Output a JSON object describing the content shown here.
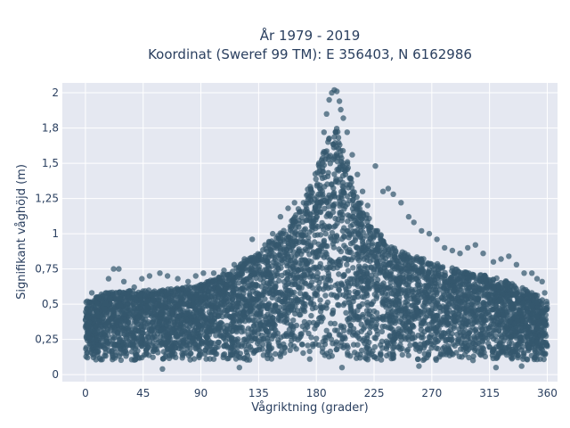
{
  "chart_data": {
    "type": "scatter",
    "title_line1": "År 1979 - 2019",
    "title_line2": "Koordinat (Sweref 99 TM): E 356403, N 6162986",
    "xlabel": "Vågriktning (grader)",
    "ylabel": "Signifikant våghöjd (m)",
    "xlim": [
      -18,
      368
    ],
    "ylim": [
      -0.05,
      2.07
    ],
    "xticks": [
      0,
      45,
      90,
      135,
      180,
      225,
      270,
      315,
      360
    ],
    "xtick_labels": [
      "0",
      "45",
      "90",
      "135",
      "180",
      "225",
      "270",
      "315",
      "360"
    ],
    "yticks": [
      0,
      0.25,
      0.5,
      0.75,
      1,
      1.25,
      1.5,
      1.75,
      2
    ],
    "ytick_labels": [
      "0",
      "0,25",
      "0,5",
      "0,75",
      "1",
      "1,25",
      "1,5",
      "1,8",
      "2"
    ],
    "grid": true,
    "marker_color": "#34586e",
    "plot_bg": "#e5e8f1",
    "envelope_upper": [
      [
        0,
        0.52
      ],
      [
        15,
        0.58
      ],
      [
        30,
        0.6
      ],
      [
        45,
        0.6
      ],
      [
        60,
        0.6
      ],
      [
        75,
        0.62
      ],
      [
        90,
        0.64
      ],
      [
        105,
        0.7
      ],
      [
        120,
        0.78
      ],
      [
        135,
        0.88
      ],
      [
        150,
        1.0
      ],
      [
        160,
        1.08
      ],
      [
        170,
        1.25
      ],
      [
        180,
        1.45
      ],
      [
        190,
        1.68
      ],
      [
        196,
        1.75
      ],
      [
        202,
        1.6
      ],
      [
        210,
        1.3
      ],
      [
        225,
        1.05
      ],
      [
        240,
        0.9
      ],
      [
        255,
        0.85
      ],
      [
        270,
        0.8
      ],
      [
        285,
        0.76
      ],
      [
        300,
        0.72
      ],
      [
        315,
        0.7
      ],
      [
        330,
        0.66
      ],
      [
        345,
        0.6
      ],
      [
        360,
        0.52
      ]
    ],
    "envelope_lower": 0.1,
    "outliers": [
      [
        5,
        0.58
      ],
      [
        10,
        0.55
      ],
      [
        18,
        0.68
      ],
      [
        22,
        0.75
      ],
      [
        26,
        0.75
      ],
      [
        30,
        0.66
      ],
      [
        38,
        0.62
      ],
      [
        44,
        0.68
      ],
      [
        50,
        0.7
      ],
      [
        58,
        0.72
      ],
      [
        64,
        0.7
      ],
      [
        72,
        0.68
      ],
      [
        80,
        0.66
      ],
      [
        86,
        0.7
      ],
      [
        92,
        0.72
      ],
      [
        100,
        0.72
      ],
      [
        108,
        0.74
      ],
      [
        116,
        0.78
      ],
      [
        124,
        0.82
      ],
      [
        130,
        0.96
      ],
      [
        140,
        0.92
      ],
      [
        146,
        1.0
      ],
      [
        152,
        1.12
      ],
      [
        158,
        1.18
      ],
      [
        163,
        1.22
      ],
      [
        170,
        1.22
      ],
      [
        176,
        1.3
      ],
      [
        182,
        1.5
      ],
      [
        186,
        1.72
      ],
      [
        188,
        1.85
      ],
      [
        190,
        1.95
      ],
      [
        192,
        2.0
      ],
      [
        194,
        2.02
      ],
      [
        196,
        2.01
      ],
      [
        198,
        1.94
      ],
      [
        199,
        1.88
      ],
      [
        201,
        1.82
      ],
      [
        204,
        1.72
      ],
      [
        208,
        1.56
      ],
      [
        212,
        1.42
      ],
      [
        216,
        1.3
      ],
      [
        220,
        1.2
      ],
      [
        226,
        1.48
      ],
      [
        232,
        1.3
      ],
      [
        236,
        1.32
      ],
      [
        240,
        1.28
      ],
      [
        246,
        1.22
      ],
      [
        252,
        1.12
      ],
      [
        256,
        1.08
      ],
      [
        262,
        1.02
      ],
      [
        268,
        1.0
      ],
      [
        274,
        0.96
      ],
      [
        280,
        0.9
      ],
      [
        286,
        0.88
      ],
      [
        292,
        0.86
      ],
      [
        298,
        0.9
      ],
      [
        304,
        0.92
      ],
      [
        310,
        0.86
      ],
      [
        318,
        0.8
      ],
      [
        324,
        0.82
      ],
      [
        330,
        0.84
      ],
      [
        336,
        0.78
      ],
      [
        342,
        0.72
      ],
      [
        348,
        0.72
      ],
      [
        352,
        0.68
      ],
      [
        356,
        0.66
      ],
      [
        358,
        0.58
      ],
      [
        60,
        0.04
      ],
      [
        120,
        0.05
      ],
      [
        200,
        0.05
      ],
      [
        260,
        0.06
      ],
      [
        320,
        0.05
      ],
      [
        340,
        0.06
      ]
    ]
  }
}
